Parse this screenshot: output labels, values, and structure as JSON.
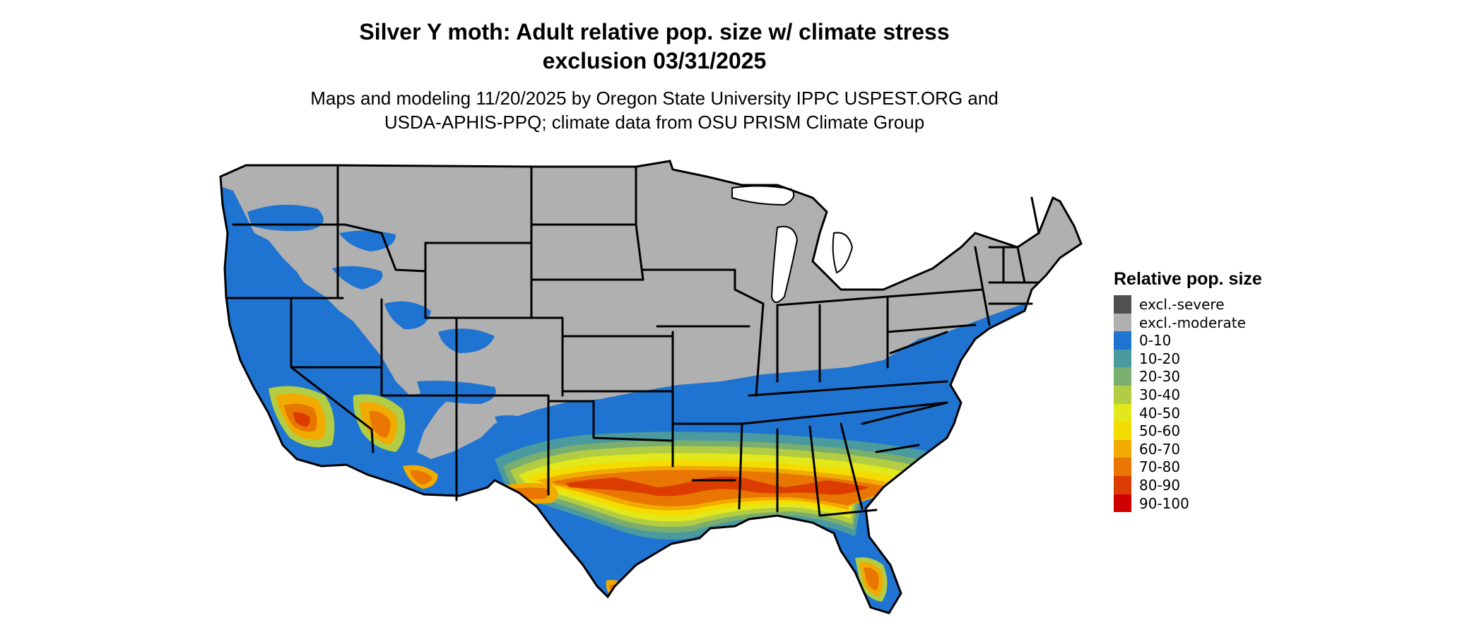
{
  "title": {
    "line1": "Silver Y moth: Adult relative pop. size w/ climate stress",
    "line2": "exclusion 03/31/2025"
  },
  "subtitle": {
    "line1": "Maps and modeling 11/20/2025 by Oregon State University IPPC USPEST.ORG and",
    "line2": "USDA-APHIS-PPQ; climate data from OSU PRISM Climate Group"
  },
  "legend": {
    "title": "Relative pop. size",
    "items": [
      {
        "label": "excl.-severe",
        "color": "#505050"
      },
      {
        "label": "excl.-moderate",
        "color": "#b0b0b0"
      },
      {
        "label": "0-10",
        "color": "#1e74d0"
      },
      {
        "label": "10-20",
        "color": "#4a9aa0"
      },
      {
        "label": "20-30",
        "color": "#7aae6e"
      },
      {
        "label": "30-40",
        "color": "#b2cd44"
      },
      {
        "label": "40-50",
        "color": "#e2e81c"
      },
      {
        "label": "50-60",
        "color": "#f5dc00"
      },
      {
        "label": "60-70",
        "color": "#f0aa00"
      },
      {
        "label": "70-80",
        "color": "#e87600"
      },
      {
        "label": "80-90",
        "color": "#dc3c00"
      },
      {
        "label": "90-100",
        "color": "#d00000"
      }
    ]
  }
}
